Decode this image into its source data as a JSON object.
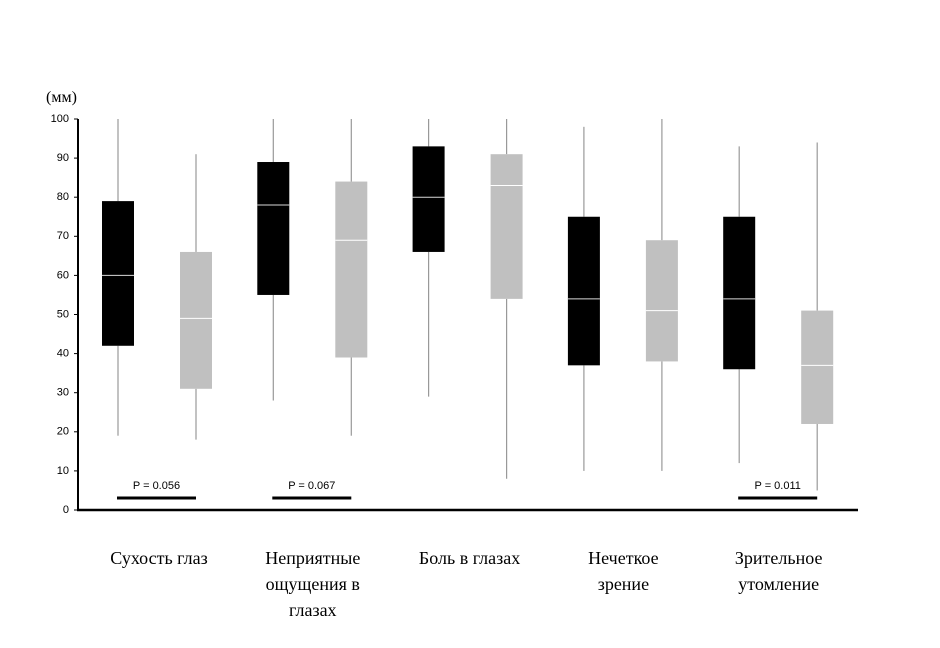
{
  "chart_data": {
    "type": "box",
    "y_label": "(мм)",
    "categories": [
      "Сухость глаз",
      "Неприятные ощущения в глазах",
      "Боль в глазах",
      "Нечеткое зрение",
      "Зрительное утомление"
    ],
    "ylim": [
      0,
      100
    ],
    "yticks": [
      0,
      10,
      20,
      30,
      40,
      50,
      60,
      70,
      80,
      90,
      100
    ],
    "series": [
      {
        "color": "#000000",
        "median_color": "#d9d9d9",
        "whisker_color": "#999999",
        "min": [
          19,
          28,
          29,
          10,
          12
        ],
        "q1": [
          42,
          55,
          66,
          37,
          36
        ],
        "median": [
          60,
          78,
          80,
          54,
          54
        ],
        "q3": [
          79,
          89,
          93,
          75,
          75
        ],
        "max": [
          100,
          100,
          100,
          98,
          93
        ]
      },
      {
        "color": "#c0c0c0",
        "median_color": "#ffffff",
        "whisker_color": "#999999",
        "min": [
          18,
          19,
          8,
          10,
          5
        ],
        "q1": [
          31,
          39,
          54,
          38,
          22
        ],
        "median": [
          49,
          69,
          83,
          51,
          37
        ],
        "q3": [
          66,
          84,
          91,
          69,
          51
        ],
        "max": [
          91,
          100,
          100,
          100,
          94
        ]
      }
    ],
    "annotations": [
      "P = 0.056",
      "P = 0.067",
      "P = 0.011"
    ]
  }
}
